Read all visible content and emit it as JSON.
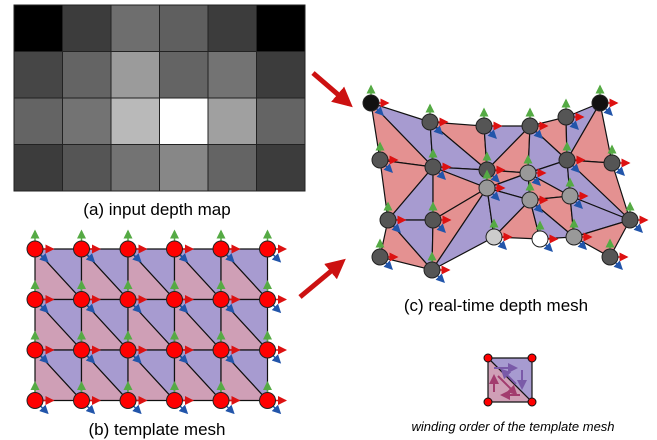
{
  "captions": {
    "depth_map": "(a) input depth map",
    "template_mesh": "(b) template mesh",
    "depth_mesh": "(c) real-time depth mesh",
    "winding": "winding order of the template mesh"
  },
  "colors": {
    "purple_face": "#a79bd0",
    "pink_face": "#cf9fb6",
    "red_face": "#e49191",
    "vertex_red": "#ff0000",
    "vertex_dark": "#555555",
    "edge": "#111111",
    "arrow_red": "#dd1111",
    "normal_green": "#55aa44",
    "normal_blue": "#2255aa"
  },
  "depth_map": {
    "grays": [
      [
        0,
        60,
        110,
        95,
        60,
        0
      ],
      [
        70,
        100,
        155,
        100,
        115,
        60
      ],
      [
        100,
        115,
        185,
        255,
        160,
        100
      ],
      [
        60,
        85,
        115,
        135,
        100,
        60
      ]
    ]
  },
  "template_mesh": {
    "vertex_rows": 4,
    "vertex_cols": 6
  },
  "depth_mesh": {
    "vertex_shades": [
      [
        "#111111",
        "#555555",
        "#555555",
        "#555555",
        "#555555",
        "#111111"
      ],
      [
        "#555555",
        "#555555",
        "#555555",
        "#999999",
        "#555555",
        "#555555"
      ],
      [
        "#555555",
        "#555555",
        "#999999",
        "#999999",
        "#999999",
        "#555555"
      ],
      [
        "#555555",
        "#555555",
        "#cccccc",
        "#ffffff",
        "#999999",
        "#555555"
      ]
    ]
  }
}
